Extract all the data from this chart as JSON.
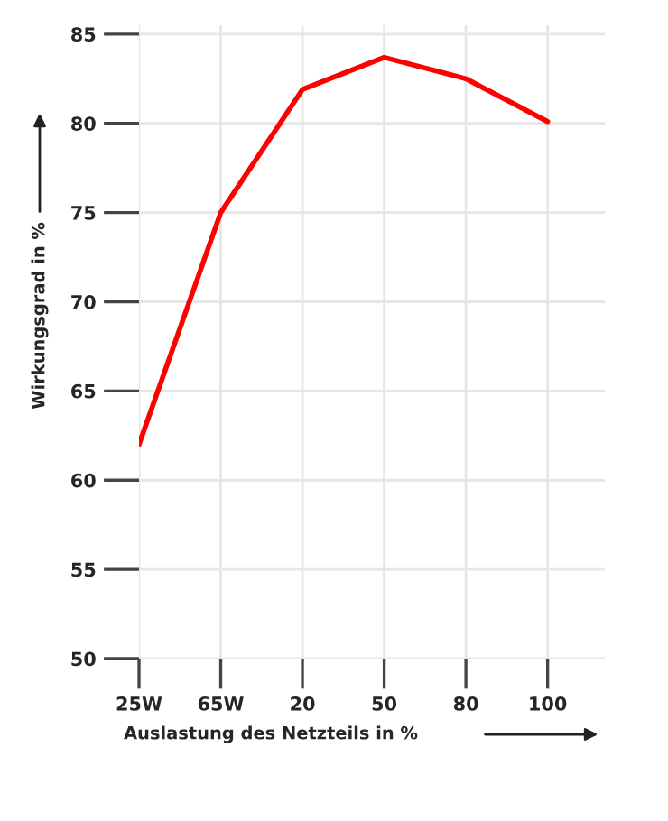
{
  "chart_data": {
    "type": "line",
    "xlabel": "Auslastung des Netzteils in %",
    "ylabel": "Wirkungsgrad in %",
    "categories": [
      "25W",
      "65W",
      "20",
      "50",
      "80",
      "100"
    ],
    "series": [
      {
        "color": "#ff0000",
        "values": [
          62,
          75,
          81.9,
          83.7,
          82.5,
          80.1
        ]
      }
    ],
    "ylim": [
      50,
      85.5
    ],
    "yticks": [
      50,
      55,
      60,
      65,
      70,
      75,
      80,
      85
    ],
    "grid": true,
    "legend": false,
    "marker": "none",
    "line_style": "solid"
  }
}
